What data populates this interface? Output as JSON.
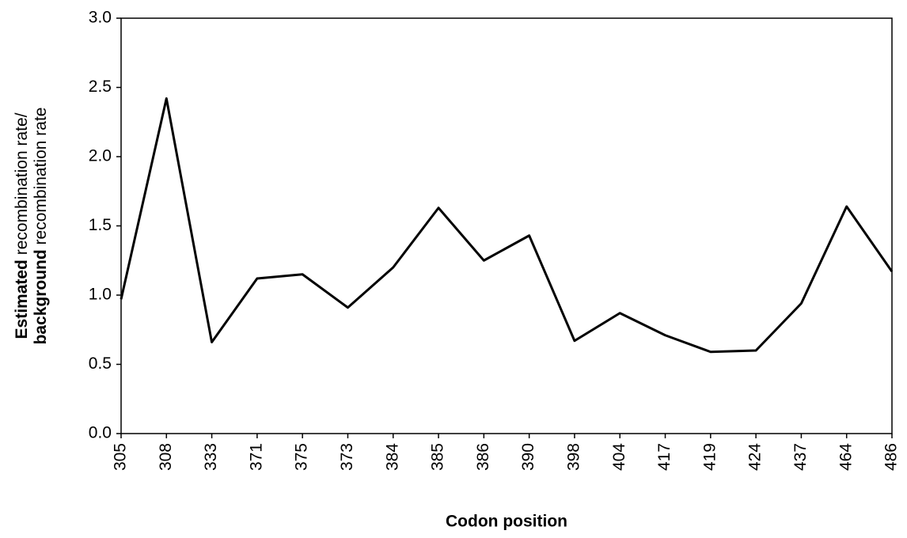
{
  "chart_data": {
    "type": "line",
    "x_label": "Codon position",
    "y_label": [
      {
        "bold": "Estimated",
        "text": " recombination rate/"
      },
      {
        "bold": "background",
        "text": " recombination rate"
      }
    ],
    "categories": [
      "305",
      "308",
      "333",
      "371",
      "375",
      "373",
      "384",
      "385",
      "386",
      "390",
      "398",
      "404",
      "417",
      "419",
      "424",
      "437",
      "464",
      "486"
    ],
    "series": [
      {
        "color": "#000000",
        "values": [
          0.97,
          2.42,
          0.66,
          1.12,
          1.15,
          0.91,
          1.2,
          1.63,
          1.25,
          1.43,
          0.67,
          0.87,
          0.71,
          0.59,
          0.6,
          0.94,
          1.64,
          1.17
        ]
      }
    ],
    "ylim": [
      0,
      3
    ],
    "yticks": [
      {
        "value": 0,
        "label": "0.0"
      },
      0.5,
      {
        "value": 1,
        "label": "1.0"
      },
      1.5,
      {
        "value": 2,
        "label": "2.0"
      },
      2.5,
      {
        "value": 3,
        "label": "3.0"
      }
    ],
    "grid": false
  }
}
